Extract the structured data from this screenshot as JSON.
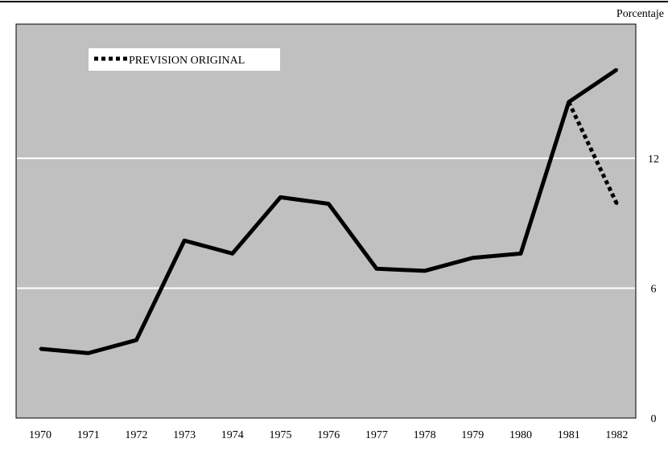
{
  "chart_data": {
    "type": "line",
    "title": "",
    "xlabel": "",
    "ylabel": "Porcentaje",
    "ylim": [
      0,
      18.2
    ],
    "y_ticks": [
      0,
      6,
      12
    ],
    "grid": "horizontal",
    "legend_position": "top-left",
    "x": [
      "1970",
      "1971",
      "1972",
      "1973",
      "1974",
      "1975",
      "1976",
      "1977",
      "1978",
      "1979",
      "1980",
      "1981",
      "1982"
    ],
    "series": [
      {
        "values": [
          3.2,
          3.0,
          3.6,
          8.2,
          7.6,
          10.2,
          9.9,
          6.9,
          6.8,
          7.4,
          7.6,
          14.6,
          16.1
        ],
        "style": "solid",
        "color": "#000000"
      },
      {
        "name": "PREVISION ORIGINAL",
        "x": [
          "1981",
          "1982"
        ],
        "values": [
          14.6,
          9.9
        ],
        "style": "dotted",
        "color": "#000000"
      }
    ],
    "colors": {
      "plot_background": "#c0c0c0",
      "gridline": "#ffffff",
      "line": "#000000"
    }
  }
}
